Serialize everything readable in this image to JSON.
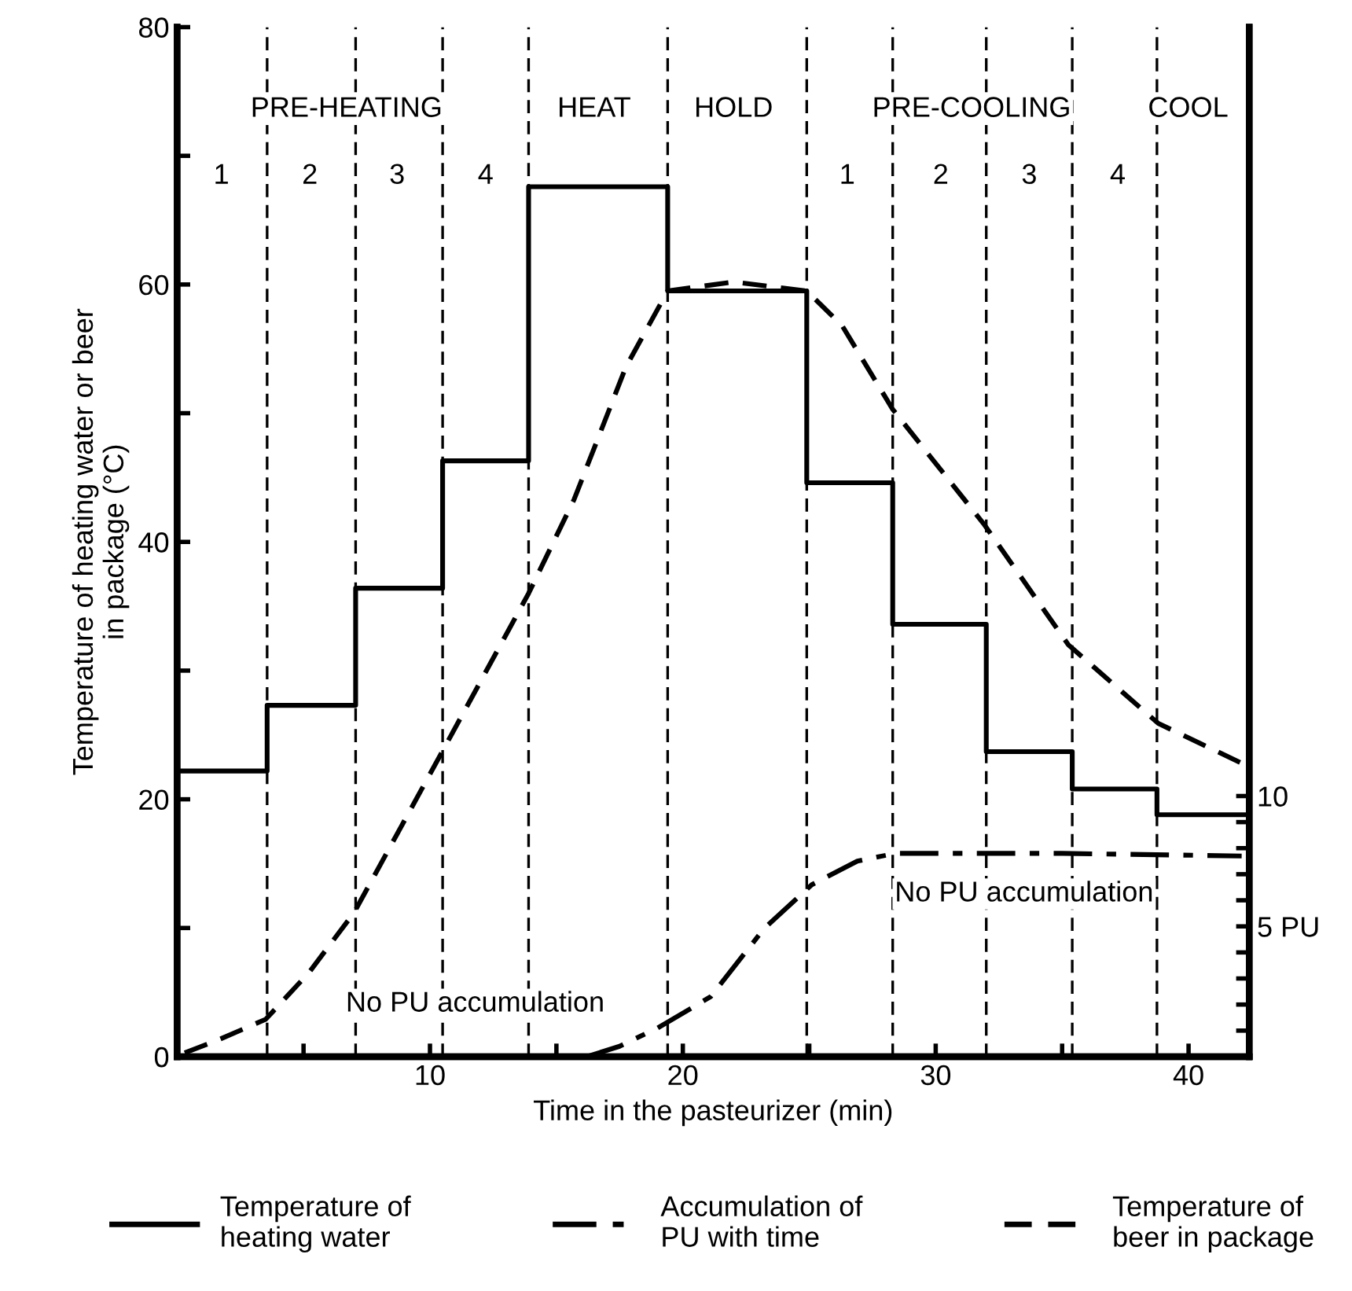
{
  "chart_data": {
    "type": "line",
    "xlabel": "Time in the pasteurizer (min)",
    "ylabel": "Temperature of heating water or beer\nin package (°C)",
    "xlim": [
      0,
      42.4
    ],
    "ylim": [
      0,
      80
    ],
    "xticks": [
      {
        "value": 5,
        "label": null
      },
      10,
      {
        "value": 15,
        "label": null
      },
      20,
      {
        "value": 25,
        "label": null
      },
      30,
      {
        "value": 35,
        "label": null
      },
      40
    ],
    "yticks": [
      0,
      {
        "value": 10,
        "label": null
      },
      20,
      {
        "value": 30,
        "label": null
      },
      40,
      {
        "value": 50,
        "label": null
      },
      60,
      {
        "value": 70,
        "label": null
      },
      80
    ],
    "y2lim": [
      0,
      39.5
    ],
    "y2ticks": [
      {
        "value": 1,
        "label": null
      },
      {
        "value": 2,
        "label": null
      },
      {
        "value": 3,
        "label": null
      },
      {
        "value": 4,
        "label": null
      },
      {
        "value": 5,
        "label": "5 PU"
      },
      {
        "value": 6,
        "label": null
      },
      {
        "value": 7,
        "label": null
      },
      {
        "value": 8,
        "label": null
      },
      {
        "value": 9,
        "label": null
      },
      10
    ],
    "legend": "bottom",
    "grid": false,
    "series": [
      {
        "name": "Temperature of\nheating water",
        "type": "step",
        "color": "#000000",
        "line_style": "solid",
        "x": [
          0,
          3.56,
          7.06,
          10.5,
          13.9,
          19.4,
          24.9,
          28.3,
          32.0,
          35.4,
          38.75,
          42.4
        ],
        "values": [
          22.2,
          27.3,
          36.4,
          46.3,
          67.6,
          59.5,
          44.6,
          33.6,
          23.7,
          20.8,
          18.8,
          18.8
        ]
      },
      {
        "name": "Accumulation of\nPU with time",
        "axis": "y2",
        "color": "#000000",
        "line_style": "dashdot",
        "x": [
          16.2,
          17.5,
          19.0,
          21.1,
          23.2,
          25.1,
          26.9,
          28.4,
          35,
          42.1
        ],
        "values": [
          0,
          0.4,
          1.1,
          2.3,
          4.9,
          6.6,
          7.5,
          7.8,
          7.8,
          7.7
        ]
      },
      {
        "name": "Temperature of\nbeer in package",
        "color": "#000000",
        "line_style": "dashed",
        "x": [
          0.3,
          1.5,
          3.5,
          5.2,
          7.0,
          10.4,
          13.9,
          15.7,
          17.75,
          19.4,
          22,
          24.9,
          26.3,
          28.3,
          31.9,
          35.25,
          38.8,
          42.1
        ],
        "values": [
          0.3,
          1.2,
          2.9,
          6.5,
          11.2,
          23.4,
          36.0,
          43.3,
          53.6,
          59.5,
          60.2,
          59.5,
          56.8,
          50.3,
          41.4,
          32,
          25.9,
          22.8
        ]
      }
    ],
    "ref_lines": [
      {
        "axis": "x",
        "value": 3.56,
        "color": "#000000",
        "line_style": "dashed"
      },
      {
        "axis": "x",
        "value": 7.06,
        "color": "#000000",
        "line_style": "dashed"
      },
      {
        "axis": "x",
        "value": 10.5,
        "color": "#000000",
        "line_style": "dashed"
      },
      {
        "axis": "x",
        "value": 13.9,
        "color": "#000000",
        "line_style": "dashed"
      },
      {
        "axis": "x",
        "value": 19.4,
        "color": "#000000",
        "line_style": "dashed"
      },
      {
        "axis": "x",
        "value": 24.9,
        "color": "#000000",
        "line_style": "dashed"
      },
      {
        "axis": "x",
        "value": 28.3,
        "color": "#000000",
        "line_style": "dashed"
      },
      {
        "axis": "x",
        "value": 32.0,
        "color": "#000000",
        "line_style": "dashed"
      },
      {
        "axis": "x",
        "value": 35.4,
        "color": "#000000",
        "line_style": "dashed"
      },
      {
        "axis": "x",
        "value": 38.75,
        "color": "#000000",
        "line_style": "dashed"
      }
    ],
    "annotations": [
      "PRE-HEATING",
      "HEAT",
      "HOLD",
      "PRE-COOLING",
      "COOL",
      {
        "text": "1",
        "x": 1.75,
        "y": 68.4
      },
      {
        "text": "2",
        "x": 5.25,
        "y": 68.4
      },
      {
        "text": "3",
        "x": 8.7,
        "y": 68.4
      },
      {
        "text": "4",
        "x": 12.2,
        "y": 68.4
      },
      {
        "text": "1",
        "x": 26.5,
        "y": 68.4
      },
      {
        "text": "2",
        "x": 30.2,
        "y": 68.4
      },
      {
        "text": "3",
        "x": 33.7,
        "y": 68.4
      },
      {
        "text": "4",
        "x": 37.2,
        "y": 68.4
      },
      "No PU accumulation",
      "No PU accumulation"
    ]
  }
}
